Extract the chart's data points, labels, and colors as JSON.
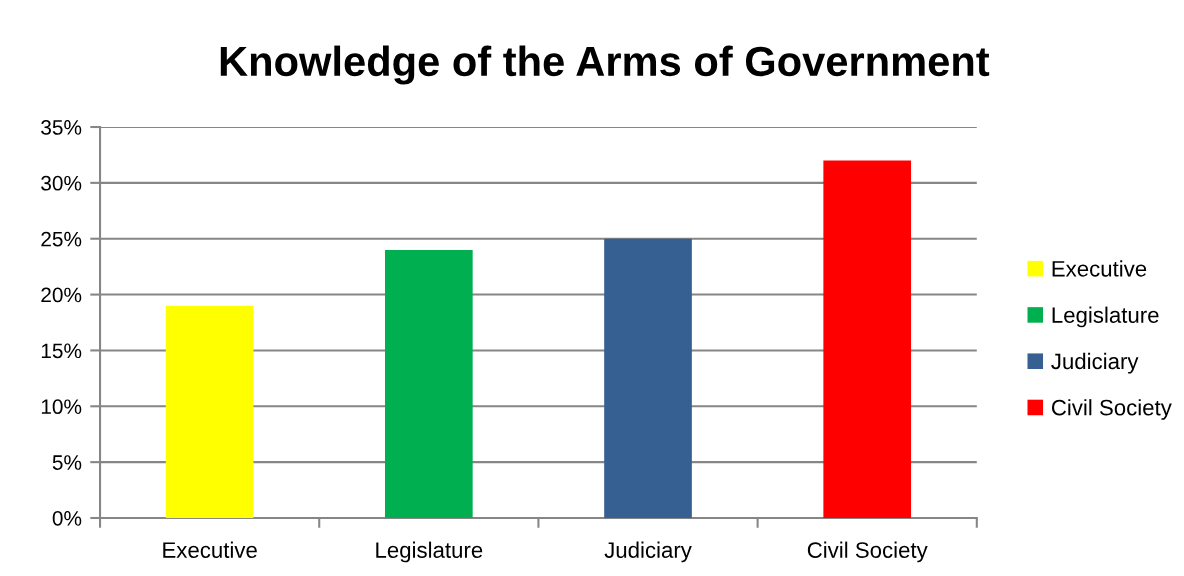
{
  "chart_data": {
    "type": "bar",
    "title": "Knowledge of the Arms of Government",
    "categories": [
      "Executive",
      "Legislature",
      "Judiciary",
      "Civil Society"
    ],
    "series": [
      {
        "name": "Executive",
        "color": "#ffff00",
        "values": [
          19,
          null,
          null,
          null
        ]
      },
      {
        "name": "Legislature",
        "color": "#00b050",
        "values": [
          null,
          24,
          null,
          null
        ]
      },
      {
        "name": "Judiciary",
        "color": "#376092",
        "values": [
          null,
          null,
          25,
          null
        ]
      },
      {
        "name": "Civil Society",
        "color": "#ff0000",
        "values": [
          null,
          null,
          null,
          32
        ]
      }
    ],
    "stacked": true,
    "ylim": [
      0,
      35
    ],
    "yticks": [
      {
        "value": 0,
        "label": "0%"
      },
      {
        "value": 5,
        "label": "5%"
      },
      {
        "value": 10,
        "label": "10%"
      },
      {
        "value": 15,
        "label": "15%"
      },
      {
        "value": 20,
        "label": "20%"
      },
      {
        "value": 25,
        "label": "25%"
      },
      {
        "value": 30,
        "label": "30%"
      },
      {
        "value": 35,
        "label": "35%"
      }
    ],
    "grid": "y",
    "legend": "right"
  }
}
